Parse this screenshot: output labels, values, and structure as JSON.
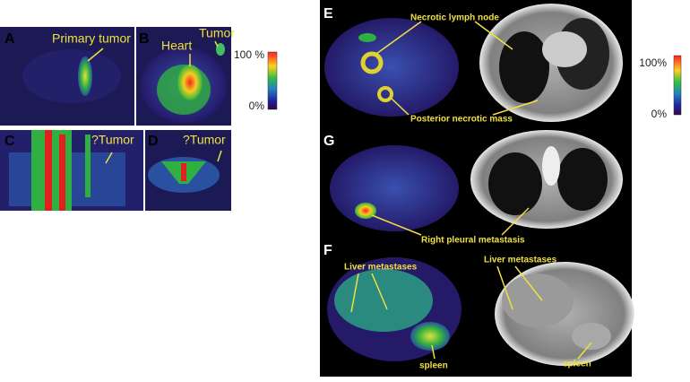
{
  "panels": {
    "A": {
      "letter": "A",
      "labels": [
        "Primary tumor"
      ]
    },
    "B": {
      "letter": "B",
      "labels": [
        "Heart",
        "Tumor"
      ]
    },
    "C": {
      "letter": "C",
      "labels": [
        "?Tumor"
      ]
    },
    "D": {
      "letter": "D",
      "labels": [
        "?Tumor"
      ]
    },
    "E": {
      "letter": "E",
      "labels": [
        "Necrotic lymph node",
        "Posterior necrotic mass"
      ]
    },
    "G": {
      "letter": "G",
      "labels": [
        "Right pleural metastasis"
      ]
    },
    "F": {
      "letter": "F",
      "labels": [
        "Liver metastases",
        "Liver metastases",
        "spleen",
        "spleen"
      ]
    }
  },
  "colorbars": [
    {
      "top": "100 %",
      "bottom": "0%"
    },
    {
      "top": "100%",
      "bottom": "0%"
    }
  ]
}
